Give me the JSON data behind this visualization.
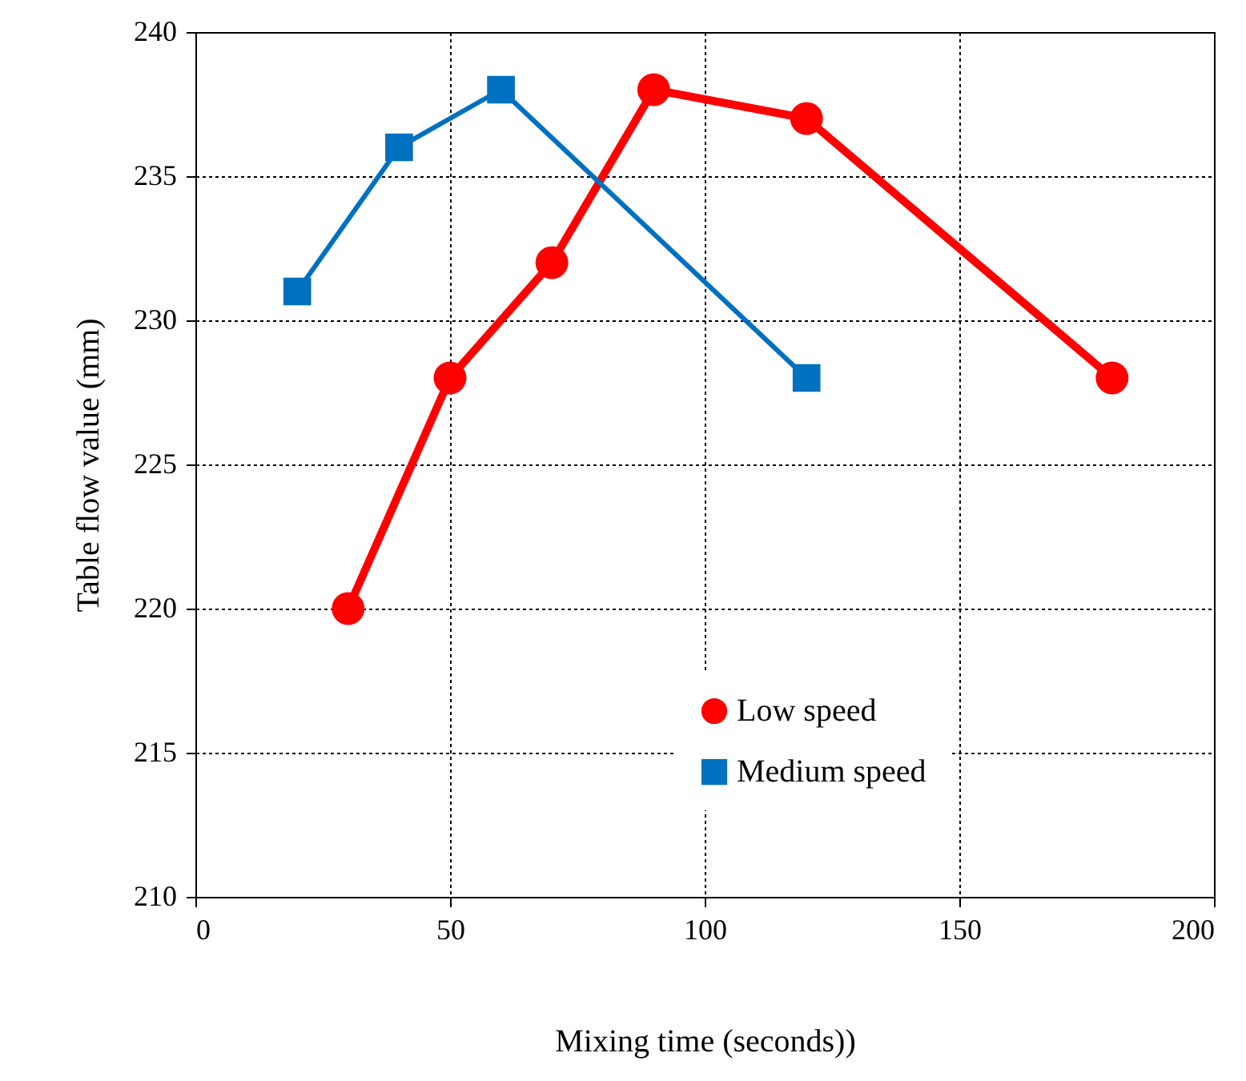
{
  "chart_data": {
    "type": "line",
    "xlabel": "Mixing time (seconds))",
    "ylabel": "Table flow value (mm)",
    "xlim": [
      0,
      200
    ],
    "xticks": [
      0,
      50,
      100,
      150,
      200
    ],
    "ylim": [
      210,
      240
    ],
    "yticks": [
      210,
      215,
      220,
      225,
      230,
      235,
      240
    ],
    "grid": true,
    "legend": "bottom right",
    "line_style": "solid",
    "series": [
      {
        "name": "Low speed",
        "color": "#ff0000",
        "marker": "circle",
        "x": [
          30,
          50,
          70,
          90,
          120,
          180
        ],
        "values": [
          220,
          228,
          232,
          238,
          237,
          228
        ]
      },
      {
        "name": "Medium speed",
        "color": "#0070c0",
        "marker": "square",
        "x": [
          20,
          40,
          60,
          120
        ],
        "values": [
          231,
          236,
          238,
          228
        ]
      }
    ]
  }
}
